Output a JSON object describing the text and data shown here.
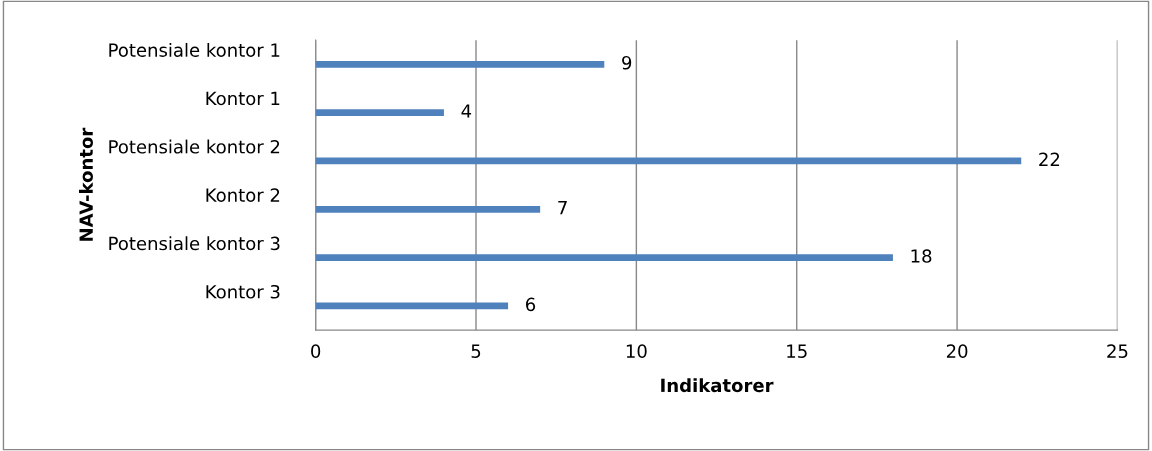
{
  "chart_data": {
    "type": "bar",
    "orientation": "horizontal",
    "xlabel": "Indikatorer",
    "ylabel": "NAV-kontor",
    "categories": [
      "Potensiale kontor 1",
      "Kontor 1",
      "Potensiale kontor 2",
      "Kontor 2",
      "Potensiale kontor 3",
      "Kontor 3"
    ],
    "values": [
      9,
      4,
      22,
      7,
      18,
      6
    ],
    "color": "#4f81bd",
    "xlim": [
      0,
      25
    ],
    "xticks": [
      0,
      5,
      10,
      15,
      20,
      25
    ],
    "grid": "x",
    "data_labels": true,
    "legend": false
  }
}
